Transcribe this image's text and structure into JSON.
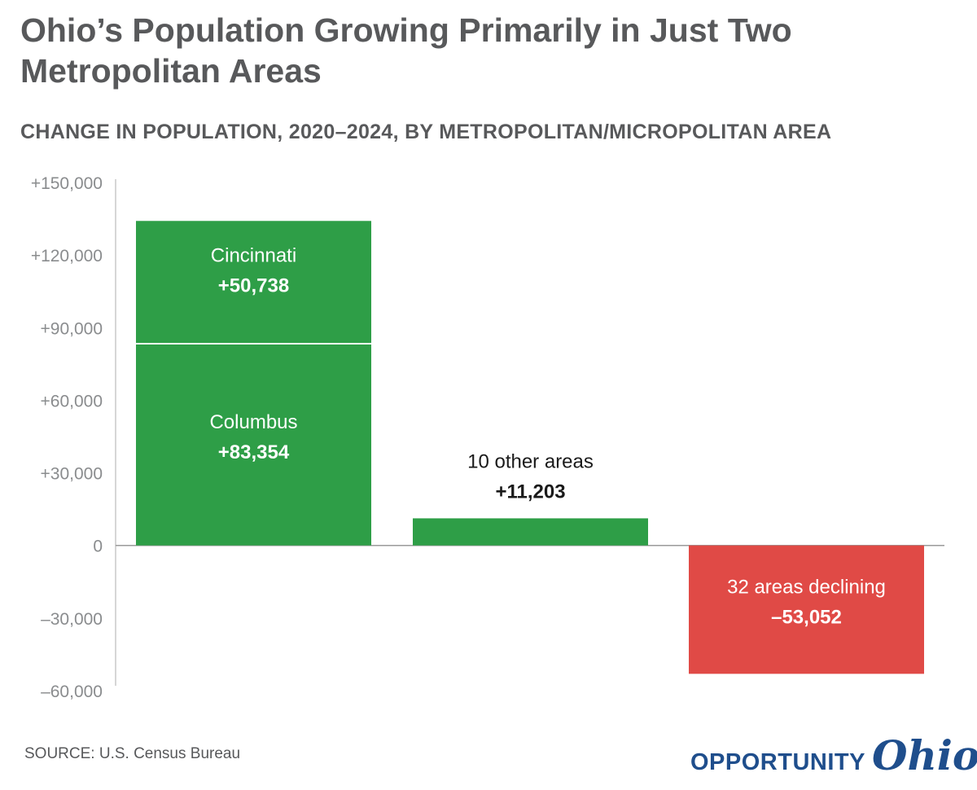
{
  "title": "Ohio’s Population Growing Primarily in Just Two Metropolitan Areas",
  "subtitle": "CHANGE IN POPULATION, 2020–2024, BY METROPOLITAN/MICROPOLITAN AREA",
  "source": "SOURCE: U.S. Census Bureau",
  "logo": {
    "word": "OPPORTUNITY",
    "script": "Ohio"
  },
  "colors": {
    "growth": "#2e9e47",
    "decline": "#e04a46",
    "axis": "#c8c8c8",
    "text": "#58595b"
  },
  "chart_data": {
    "type": "bar",
    "stacked": true,
    "ylim": [
      -60000,
      150000
    ],
    "yticks": [
      150000,
      120000,
      90000,
      60000,
      30000,
      0,
      -30000,
      -60000
    ],
    "ytick_labels": [
      "+150,000",
      "+120,000",
      "+90,000",
      "+60,000",
      "+30,000",
      "0",
      "–30,000",
      "–60,000"
    ],
    "bars": [
      {
        "segments": [
          {
            "label": "Columbus",
            "value_label": "+83,354",
            "value": 83354,
            "color": "#2e9e47"
          },
          {
            "label": "Cincinnati",
            "value_label": "+50,738",
            "value": 50738,
            "color": "#2e9e47"
          }
        ]
      },
      {
        "segments": [
          {
            "label": "10 other areas",
            "value_label": "+11,203",
            "value": 11203,
            "color": "#2e9e47"
          }
        ]
      },
      {
        "segments": [
          {
            "label": "32 areas declining",
            "value_label": "–53,052",
            "value": -53052,
            "color": "#e04a46"
          }
        ]
      }
    ]
  }
}
